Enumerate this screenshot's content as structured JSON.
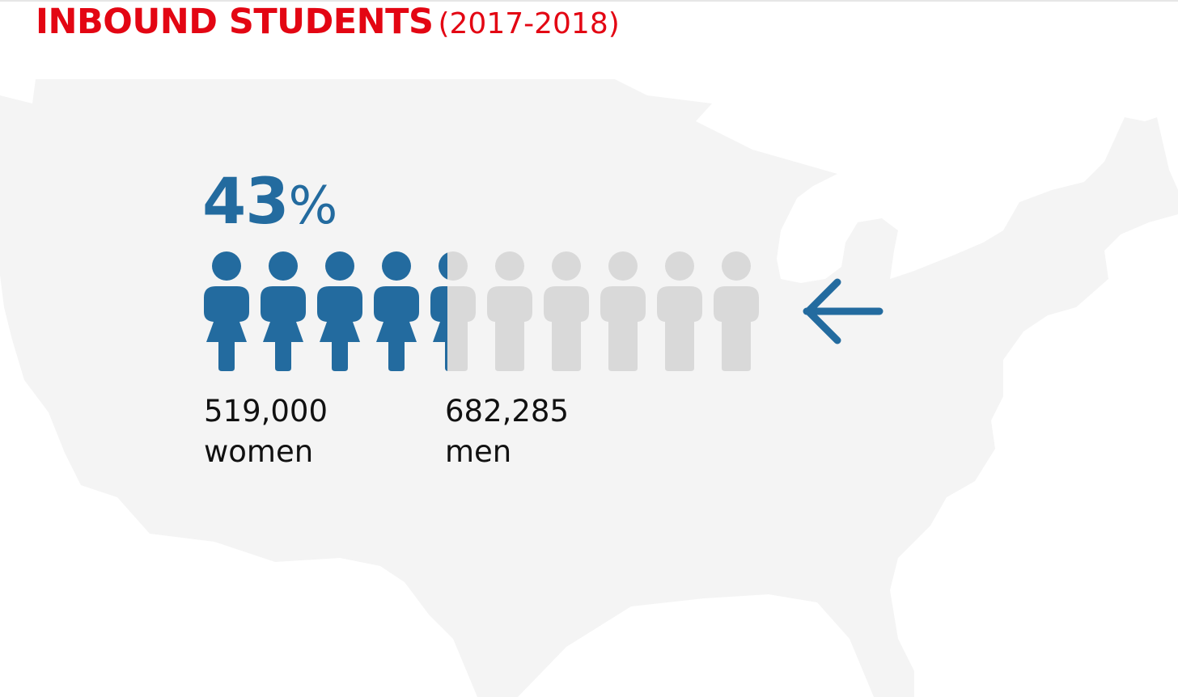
{
  "header": {
    "title": "INBOUND STUDENTS",
    "subtitle": "(2017-2018)"
  },
  "infographic": {
    "percent_value": "43",
    "percent_sign": "%",
    "women_share": 0.43,
    "figure_count": 10,
    "women": {
      "count": "519,000",
      "label": "women"
    },
    "men": {
      "count": "682,285",
      "label": "men"
    }
  },
  "icons": {
    "background": "usa-map-silhouette",
    "person": "person-icon",
    "arrow": "arrow-left-icon"
  },
  "colors": {
    "title_red": "#e30613",
    "women_blue": "#236b9f",
    "men_gray": "#d9d9d9",
    "map_gray": "#f4f4f4",
    "text": "#111111"
  }
}
